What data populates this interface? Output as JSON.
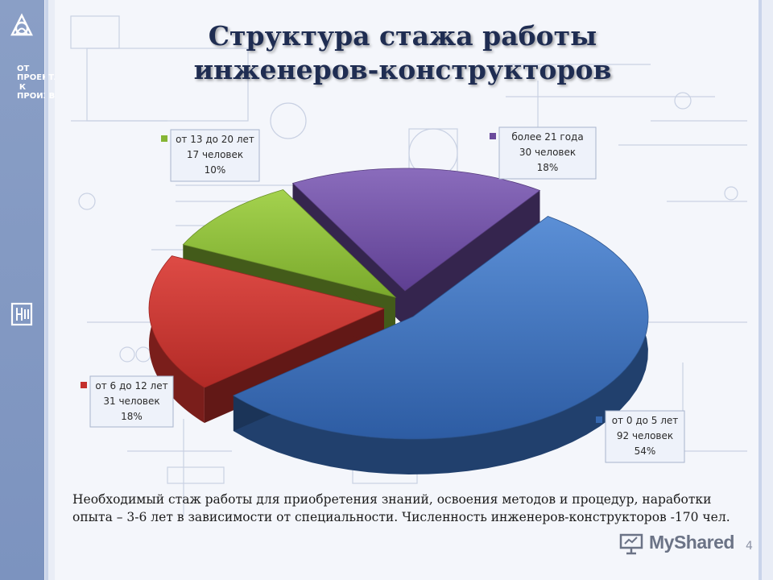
{
  "slide": {
    "title_line1": "Структура стажа работы",
    "title_line2": "инженеров-конструкторов",
    "caption_line1": "Необходимый стаж работы для приобретения знаний, освоения методов и процедур, наработки",
    "caption_line2": "опыта – 3-6 лет в зависимости от специальности. Численность инженеров-конструкторов -170 чел.",
    "page_number": "4",
    "sidebar_text": "ОТ\nПРОЕКТА\nК\nПРОИЗВОДСТВУ",
    "watermark_text": "MyShared"
  },
  "chart_data": {
    "type": "pie",
    "title": "Структура стажа работы инженеров-конструкторов",
    "three_d": true,
    "legend_placement": "callouts",
    "slices": [
      {
        "label": "от 0 до 5 лет",
        "count_text": "92 человек",
        "percent_text": "54%",
        "value": 92,
        "percent": 54,
        "color": "#3668b0"
      },
      {
        "label": "от 6 до 12 лет",
        "count_text": "31 человек",
        "percent_text": "18%",
        "value": 31,
        "percent": 18,
        "color": "#c4302c"
      },
      {
        "label": "от 13 до 20 лет",
        "count_text": "17 человек",
        "percent_text": "10%",
        "value": 17,
        "percent": 10,
        "color": "#86b534"
      },
      {
        "label": "более 21 года",
        "count_text": "30 человек",
        "percent_text": "18%",
        "value": 30,
        "percent": 18,
        "color": "#6a4a9c"
      }
    ]
  }
}
